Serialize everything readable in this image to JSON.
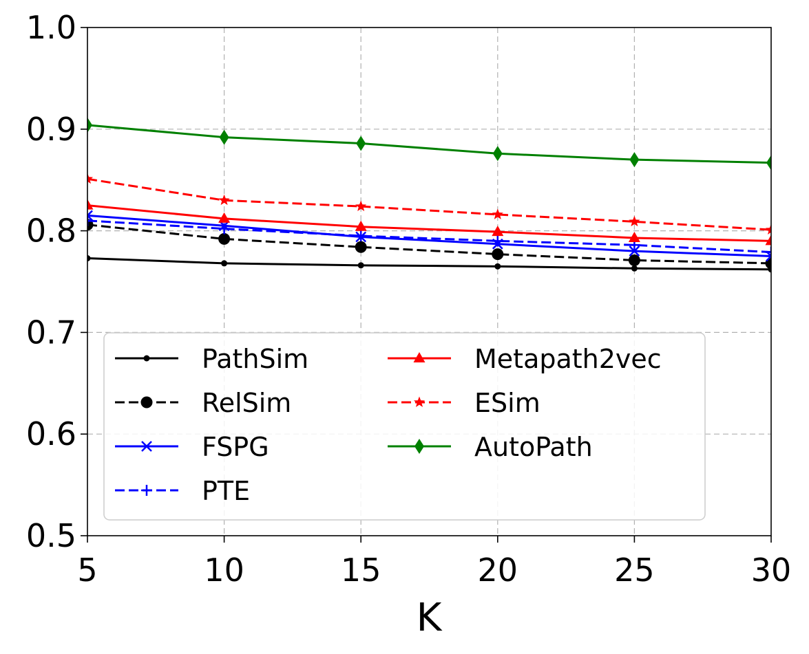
{
  "chart_data": {
    "type": "line",
    "title": "",
    "xlabel": "K",
    "ylabel": "",
    "x": [
      5,
      10,
      15,
      20,
      25,
      30
    ],
    "xlim": [
      5,
      30
    ],
    "ylim": [
      0.5,
      1.0
    ],
    "xticks": [
      "5",
      "10",
      "15",
      "20",
      "25",
      "30"
    ],
    "yticks": [
      "0.5",
      "0.6",
      "0.7",
      "0.8",
      "0.9",
      "1.0"
    ],
    "grid": true,
    "legend_position": "lower-left",
    "series": [
      {
        "name": "PathSim",
        "values": [
          0.773,
          0.768,
          0.766,
          0.765,
          0.763,
          0.762
        ],
        "color": "#000000",
        "dash": "solid",
        "marker": "point"
      },
      {
        "name": "RelSim",
        "values": [
          0.806,
          0.792,
          0.784,
          0.777,
          0.771,
          0.768
        ],
        "color": "#000000",
        "dash": "dashed",
        "marker": "circle"
      },
      {
        "name": "FSPG",
        "values": [
          0.815,
          0.805,
          0.794,
          0.787,
          0.78,
          0.775
        ],
        "color": "#0000ff",
        "dash": "solid",
        "marker": "x"
      },
      {
        "name": "PTE",
        "values": [
          0.81,
          0.802,
          0.795,
          0.79,
          0.786,
          0.779
        ],
        "color": "#0000ff",
        "dash": "dashed",
        "marker": "plus"
      },
      {
        "name": "Metapath2vec",
        "values": [
          0.825,
          0.812,
          0.804,
          0.799,
          0.793,
          0.79
        ],
        "color": "#ff0000",
        "dash": "solid",
        "marker": "triangle"
      },
      {
        "name": "ESim",
        "values": [
          0.851,
          0.83,
          0.824,
          0.816,
          0.809,
          0.801
        ],
        "color": "#ff0000",
        "dash": "dashed",
        "marker": "star"
      },
      {
        "name": "AutoPath",
        "values": [
          0.904,
          0.892,
          0.886,
          0.876,
          0.87,
          0.867
        ],
        "color": "#008000",
        "dash": "solid",
        "marker": "diamond"
      }
    ]
  }
}
